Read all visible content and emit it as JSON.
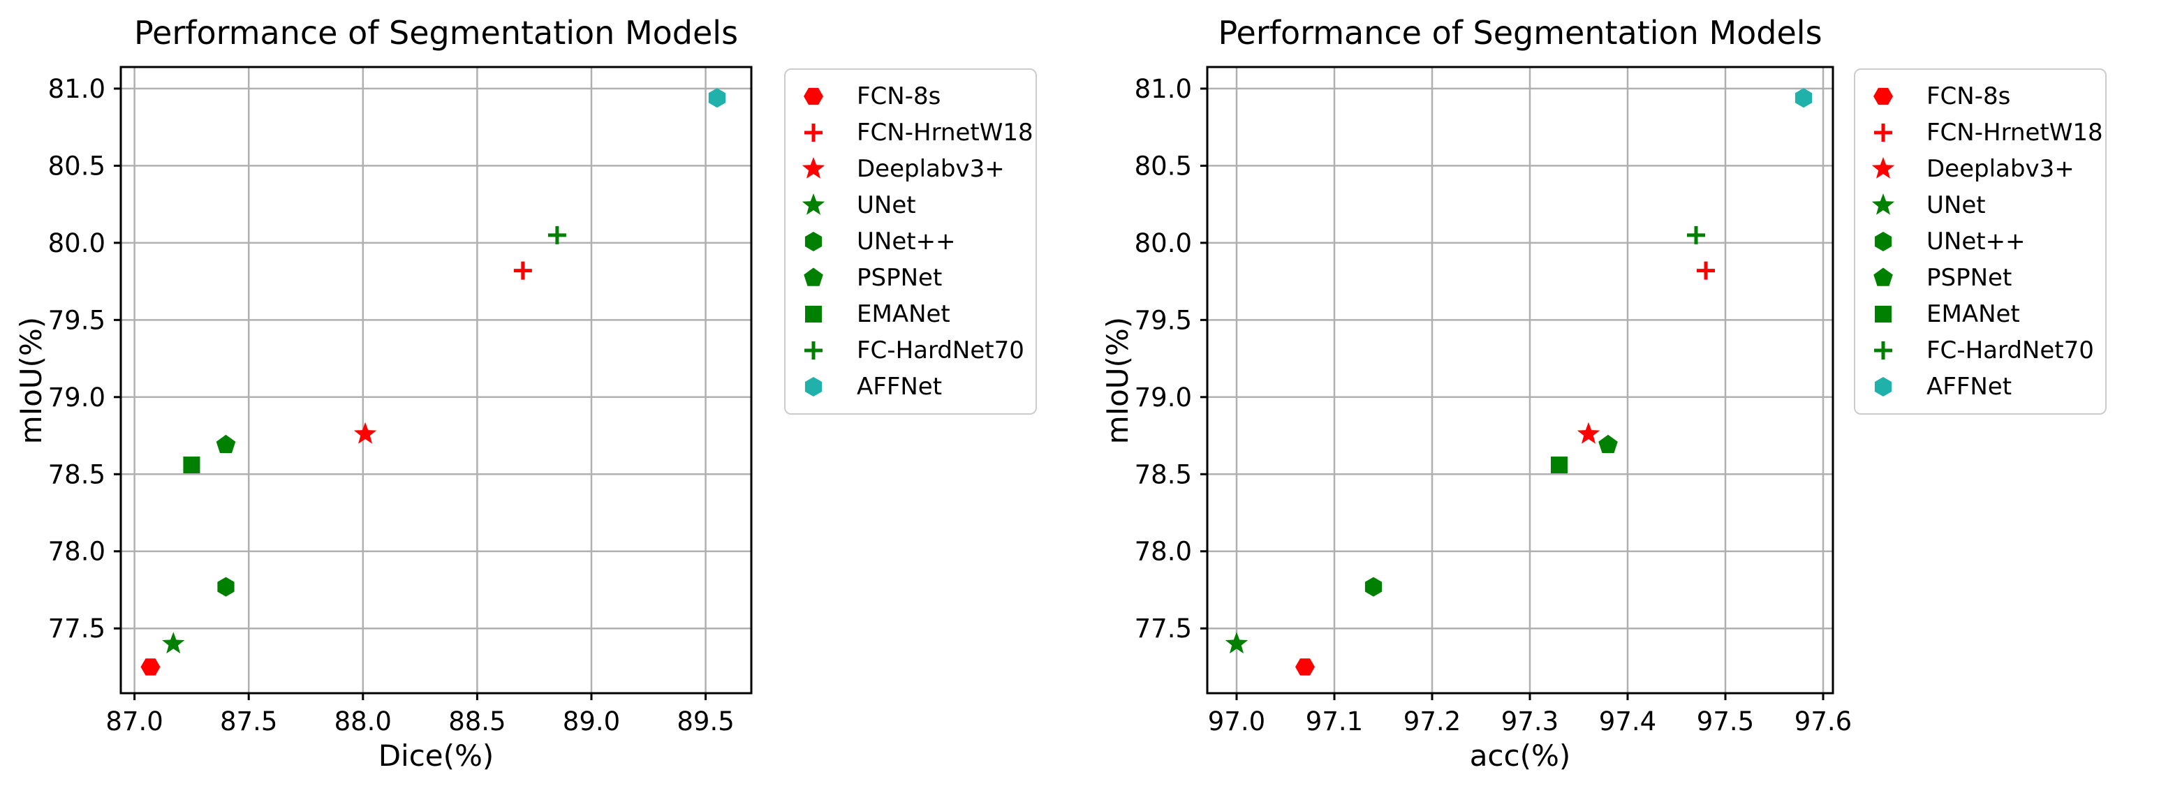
{
  "figure": {
    "background": "#ffffff",
    "text_color": "#000000",
    "grid_color": "#b0b0b0",
    "spine_color": "#000000",
    "legend_border_color": "#cccccc",
    "legend_background": "#ffffff"
  },
  "chart_data": [
    {
      "type": "scatter",
      "title": "Performance of Segmentation Models",
      "xlabel": "Dice(%)",
      "ylabel": "mIoU(%)",
      "xlim": [
        86.94,
        89.7
      ],
      "ylim": [
        77.08,
        81.14
      ],
      "xticks": [
        87.0,
        87.5,
        88.0,
        88.5,
        89.0,
        89.5
      ],
      "yticks": [
        77.5,
        78.0,
        78.5,
        79.0,
        79.5,
        80.0,
        80.5,
        81.0
      ],
      "xtick_labels": [
        "87.0",
        "87.5",
        "88.0",
        "88.5",
        "89.0",
        "89.5"
      ],
      "ytick_labels": [
        "77.5",
        "78.0",
        "78.5",
        "79.0",
        "79.5",
        "80.0",
        "80.5",
        "81.0"
      ],
      "grid": true,
      "legend_position": "outside upper right",
      "series": [
        {
          "name": "FCN-8s",
          "marker": "hexagon-flat",
          "color": "#ff0000",
          "points": [
            [
              87.07,
              77.25
            ]
          ]
        },
        {
          "name": "FCN-HrnetW18",
          "marker": "plus",
          "color": "#ff0000",
          "points": [
            [
              88.7,
              79.82
            ]
          ]
        },
        {
          "name": "Deeplabv3+",
          "marker": "star",
          "color": "#ff0000",
          "points": [
            [
              88.01,
              78.76
            ]
          ]
        },
        {
          "name": "UNet",
          "marker": "star",
          "color": "#008000",
          "points": [
            [
              87.17,
              77.4
            ]
          ]
        },
        {
          "name": "UNet++",
          "marker": "hexagon",
          "color": "#008000",
          "points": [
            [
              87.4,
              77.77
            ]
          ]
        },
        {
          "name": "PSPNet",
          "marker": "pentagon",
          "color": "#008000",
          "points": [
            [
              87.4,
              78.69
            ]
          ]
        },
        {
          "name": "EMANet",
          "marker": "square",
          "color": "#008000",
          "points": [
            [
              87.25,
              78.56
            ]
          ]
        },
        {
          "name": "FC-HardNet70",
          "marker": "plus",
          "color": "#008000",
          "points": [
            [
              88.85,
              80.05
            ]
          ]
        },
        {
          "name": "AFFNet",
          "marker": "hexagon",
          "color": "#20b2aa",
          "points": [
            [
              89.55,
              80.94
            ]
          ]
        }
      ]
    },
    {
      "type": "scatter",
      "title": "Performance of Segmentation Models",
      "xlabel": "acc(%)",
      "ylabel": "mIoU(%)",
      "xlim": [
        96.97,
        97.61
      ],
      "ylim": [
        77.08,
        81.14
      ],
      "xticks": [
        97.0,
        97.1,
        97.2,
        97.3,
        97.4,
        97.5,
        97.6
      ],
      "yticks": [
        77.5,
        78.0,
        78.5,
        79.0,
        79.5,
        80.0,
        80.5,
        81.0
      ],
      "xtick_labels": [
        "97.0",
        "97.1",
        "97.2",
        "97.3",
        "97.4",
        "97.5",
        "97.6"
      ],
      "ytick_labels": [
        "77.5",
        "78.0",
        "78.5",
        "79.0",
        "79.5",
        "80.0",
        "80.5",
        "81.0"
      ],
      "grid": true,
      "legend_position": "outside upper right",
      "series": [
        {
          "name": "FCN-8s",
          "marker": "hexagon-flat",
          "color": "#ff0000",
          "points": [
            [
              97.07,
              77.25
            ]
          ]
        },
        {
          "name": "FCN-HrnetW18",
          "marker": "plus",
          "color": "#ff0000",
          "points": [
            [
              97.48,
              79.82
            ]
          ]
        },
        {
          "name": "Deeplabv3+",
          "marker": "star",
          "color": "#ff0000",
          "points": [
            [
              97.36,
              78.76
            ]
          ]
        },
        {
          "name": "UNet",
          "marker": "star",
          "color": "#008000",
          "points": [
            [
              97.0,
              77.4
            ]
          ]
        },
        {
          "name": "UNet++",
          "marker": "hexagon",
          "color": "#008000",
          "points": [
            [
              97.14,
              77.77
            ]
          ]
        },
        {
          "name": "PSPNet",
          "marker": "pentagon",
          "color": "#008000",
          "points": [
            [
              97.38,
              78.69
            ]
          ]
        },
        {
          "name": "EMANet",
          "marker": "square",
          "color": "#008000",
          "points": [
            [
              97.33,
              78.56
            ]
          ]
        },
        {
          "name": "FC-HardNet70",
          "marker": "plus",
          "color": "#008000",
          "points": [
            [
              97.47,
              80.05
            ]
          ]
        },
        {
          "name": "AFFNet",
          "marker": "hexagon",
          "color": "#20b2aa",
          "points": [
            [
              97.58,
              80.94
            ]
          ]
        }
      ]
    }
  ]
}
